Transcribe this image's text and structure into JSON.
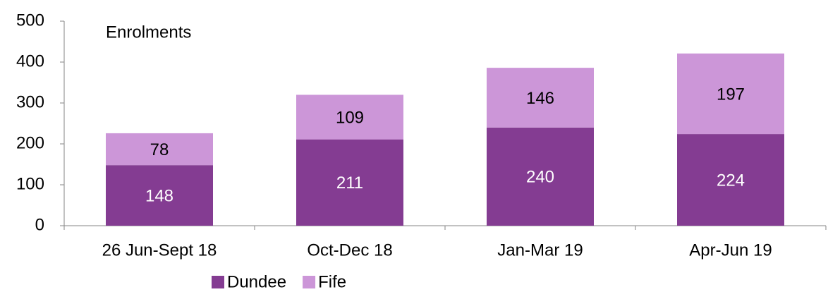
{
  "chart_data": {
    "type": "bar",
    "stacked": true,
    "title": "Enrolments",
    "categories": [
      "26 Jun-Sept 18",
      "Oct-Dec 18",
      "Jan-Mar 19",
      "Apr-Jun 19"
    ],
    "series": [
      {
        "name": "Dundee",
        "color": "#843c92",
        "label_color": "#ffffff",
        "values": [
          148,
          211,
          240,
          224
        ]
      },
      {
        "name": "Fife",
        "color": "#cc96d8",
        "label_color": "#000000",
        "values": [
          78,
          109,
          146,
          197
        ]
      }
    ],
    "ylim": [
      0,
      500
    ],
    "yticks": [
      0,
      100,
      200,
      300,
      400,
      500
    ],
    "grid": false,
    "legend": "bottom"
  }
}
